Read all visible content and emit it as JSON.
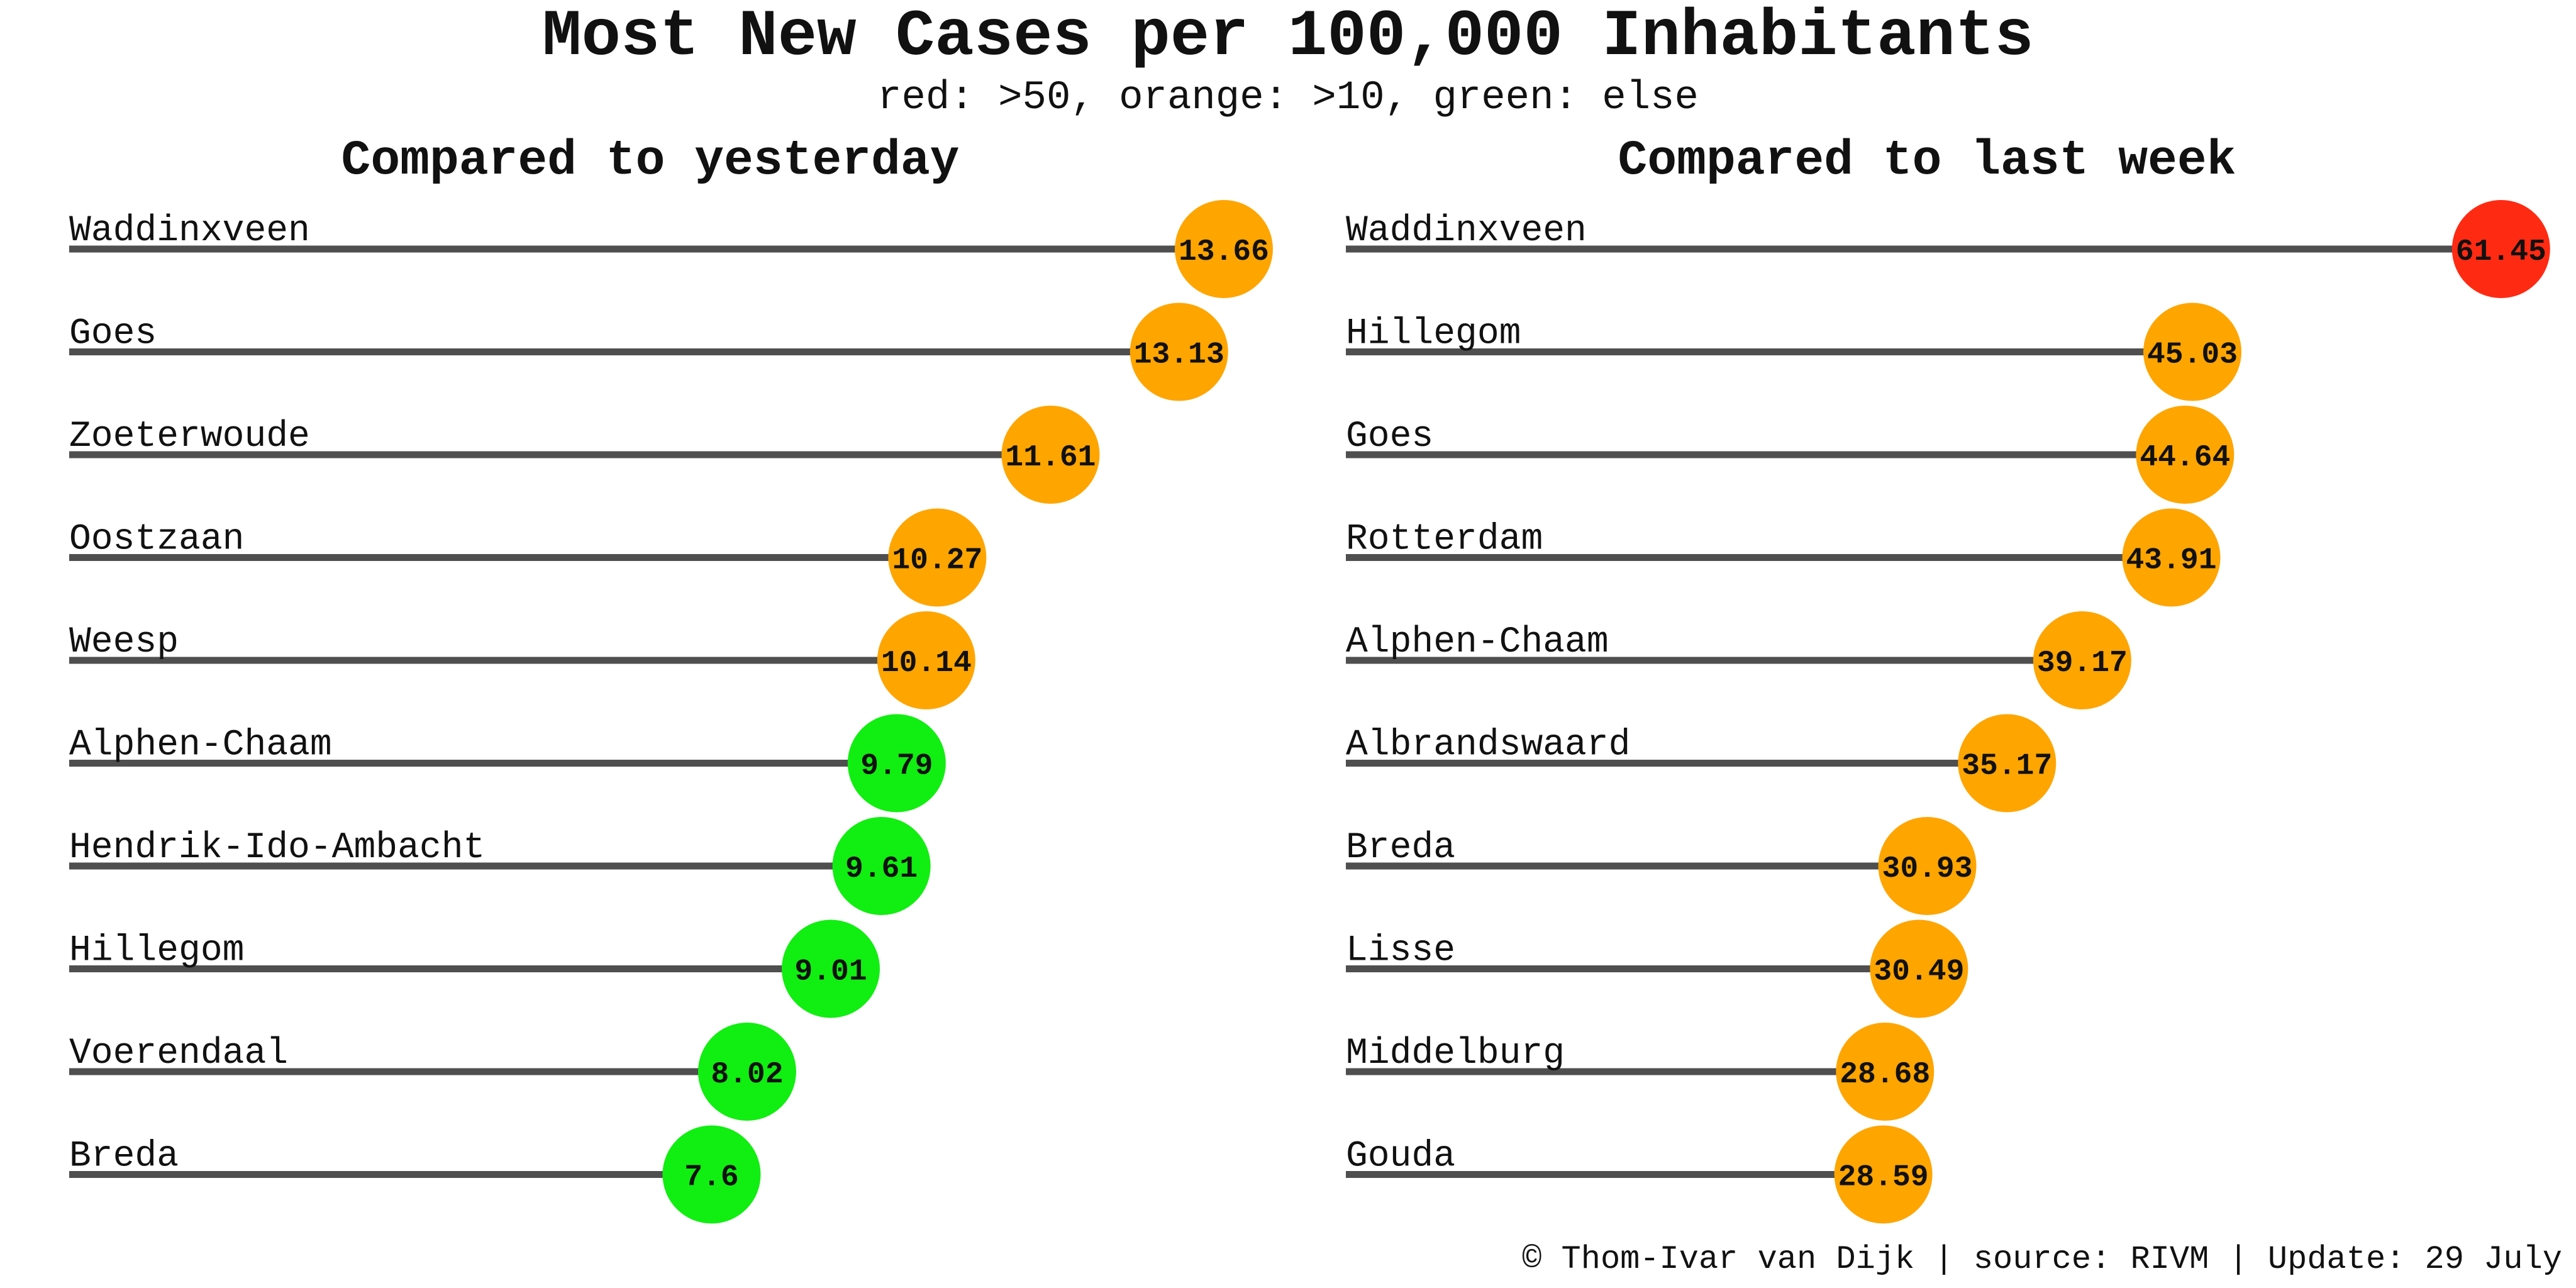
{
  "header": {
    "title": "Most New Cases per 100,000 Inhabitants",
    "subtitle": "red: >50, orange: >10, green: else"
  },
  "footer": {
    "credit": "© Thom-Ivar van Dijk | source: RIVM | Update: 29 July"
  },
  "colors": {
    "red": "#ff2a12",
    "orange": "#ffa500",
    "green": "#11ee11",
    "stem": "#4f4f4f",
    "text": "#111111"
  },
  "chart_data": [
    {
      "type": "lollipop",
      "title": "Compared to yesterday",
      "categories": [
        "Waddinxveen",
        "Goes",
        "Zoeterwoude",
        "Oostzaan",
        "Weesp",
        "Alphen-Chaam",
        "Hendrik-Ido-Ambacht",
        "Hillegom",
        "Voerendaal",
        "Breda"
      ],
      "labels": [
        "13.66",
        "13.13",
        "11.61",
        "10.27",
        "10.14",
        "9.79",
        "9.61",
        "9.01",
        "8.02",
        "7.6"
      ],
      "values": [
        13.66,
        13.13,
        11.61,
        10.27,
        10.14,
        9.79,
        9.61,
        9.01,
        8.02,
        7.6
      ],
      "xlim": [
        0,
        14.3
      ],
      "color_thresholds": {
        "red": 50,
        "orange": 10
      }
    },
    {
      "type": "lollipop",
      "title": "Compared to last week",
      "categories": [
        "Waddinxveen",
        "Hillegom",
        "Goes",
        "Rotterdam",
        "Alphen-Chaam",
        "Albrandswaard",
        "Breda",
        "Lisse",
        "Middelburg",
        "Gouda"
      ],
      "labels": [
        "61.45",
        "45.03",
        "44.64",
        "43.91",
        "39.17",
        "35.17",
        "30.93",
        "30.49",
        "28.68",
        "28.59"
      ],
      "values": [
        61.45,
        45.03,
        44.64,
        43.91,
        39.17,
        35.17,
        30.93,
        30.49,
        28.68,
        28.59
      ],
      "xlim": [
        0,
        64.3
      ],
      "color_thresholds": {
        "red": 50,
        "orange": 10
      }
    }
  ]
}
